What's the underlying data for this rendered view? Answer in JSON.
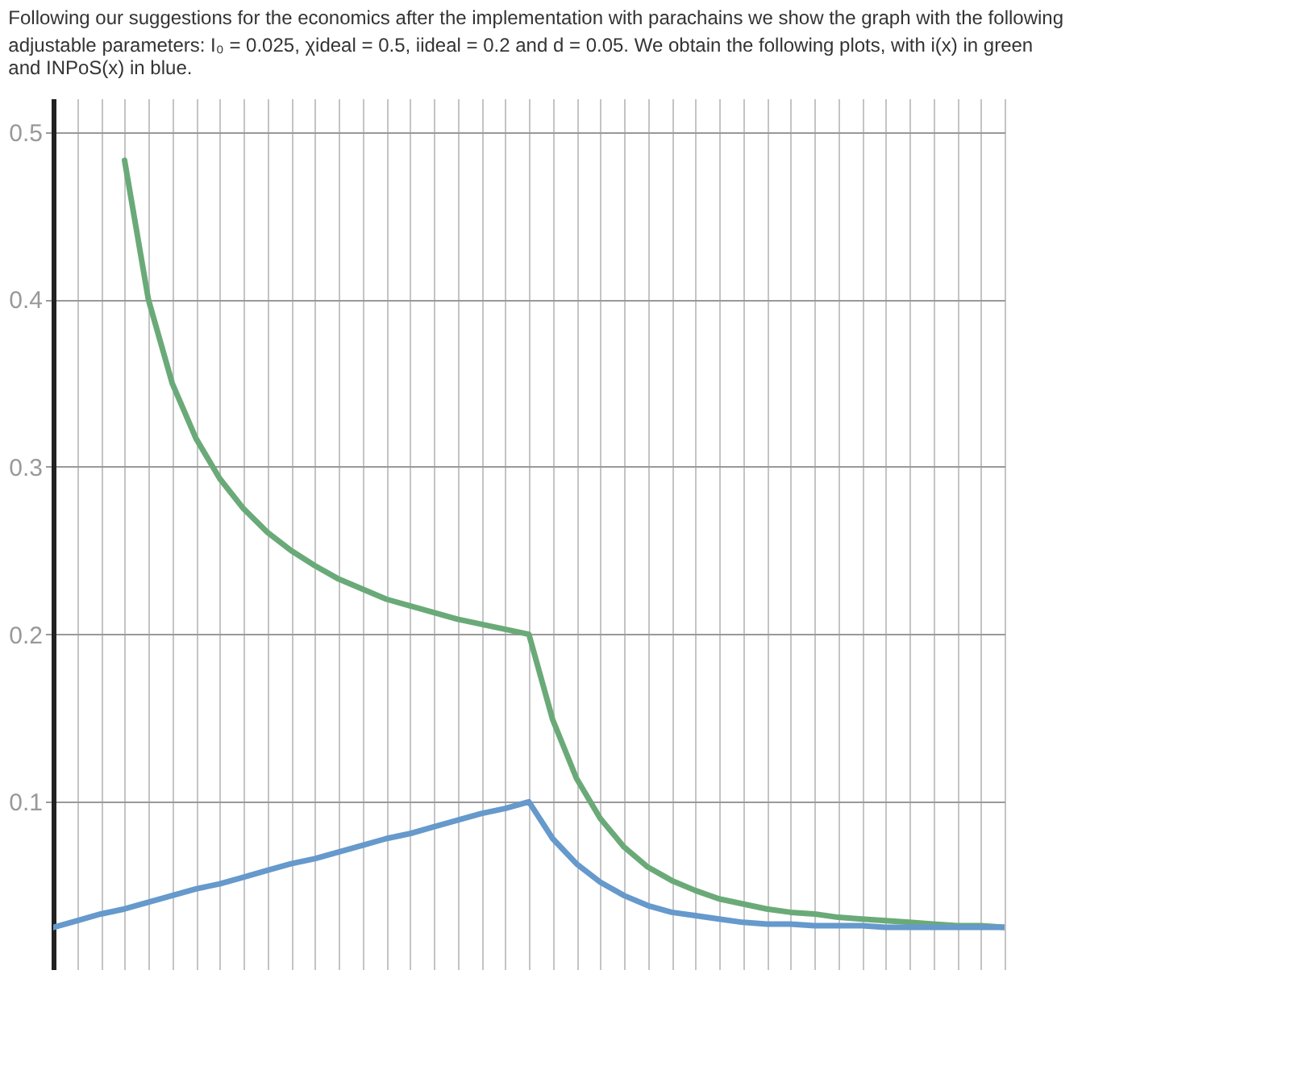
{
  "chart_data": {
    "type": "line",
    "title": "Following our suggestions for the economics after the implementation with parachains we show the graph with the following",
    "subtitle": "adjustable parameters: I₀ = 0.025, χideal = 0.5, iideal = 0.2 and d = 0.05. We obtain the following plots, with i(x) in green",
    "annotations": [
      "and INPoS(x) in blue."
    ],
    "categories": [
      null,
      null,
      null,
      null,
      null,
      null,
      null,
      null,
      null,
      null,
      null,
      null,
      null,
      null,
      null,
      null,
      null,
      null,
      null,
      null,
      null,
      null,
      null,
      null,
      null,
      null,
      null,
      null,
      null,
      null,
      null,
      null,
      null,
      null,
      null,
      null,
      null,
      null,
      null,
      null,
      null
    ],
    "series": [
      {
        "color": "#6aaa78",
        "values": [
          null,
          null,
          null,
          0.483,
          0.4,
          0.35,
          0.317,
          0.293,
          0.275,
          0.261,
          0.25,
          0.241,
          0.233,
          0.227,
          0.221,
          0.217,
          0.213,
          0.209,
          0.206,
          0.203,
          0.2,
          0.149,
          0.114,
          0.09,
          0.073,
          0.061,
          0.053,
          0.047,
          0.042,
          0.039,
          0.036,
          0.034,
          0.033,
          0.031,
          0.03,
          0.029,
          0.028,
          0.027,
          0.026,
          0.026,
          0.025
        ]
      },
      {
        "color": "#6699cc",
        "values": [
          0.025,
          0.029,
          0.033,
          0.036,
          0.04,
          0.044,
          0.048,
          0.051,
          0.055,
          0.059,
          0.063,
          0.066,
          0.07,
          0.074,
          0.078,
          0.081,
          0.085,
          0.089,
          0.093,
          0.096,
          0.1,
          0.078,
          0.063,
          0.052,
          0.044,
          0.038,
          0.034,
          0.032,
          0.03,
          0.028,
          0.027,
          0.027,
          0.026,
          0.026,
          0.026,
          0.025,
          0.025,
          0.025,
          0.025,
          0.025,
          0.025
        ]
      }
    ],
    "ylim": [
      0,
      0.52
    ],
    "yticks": [
      0.1,
      0.2,
      0.3,
      0.4,
      0.5
    ],
    "tick_labels": "y",
    "grid": true,
    "legend": false,
    "marker": "none",
    "line_style": "solid"
  }
}
